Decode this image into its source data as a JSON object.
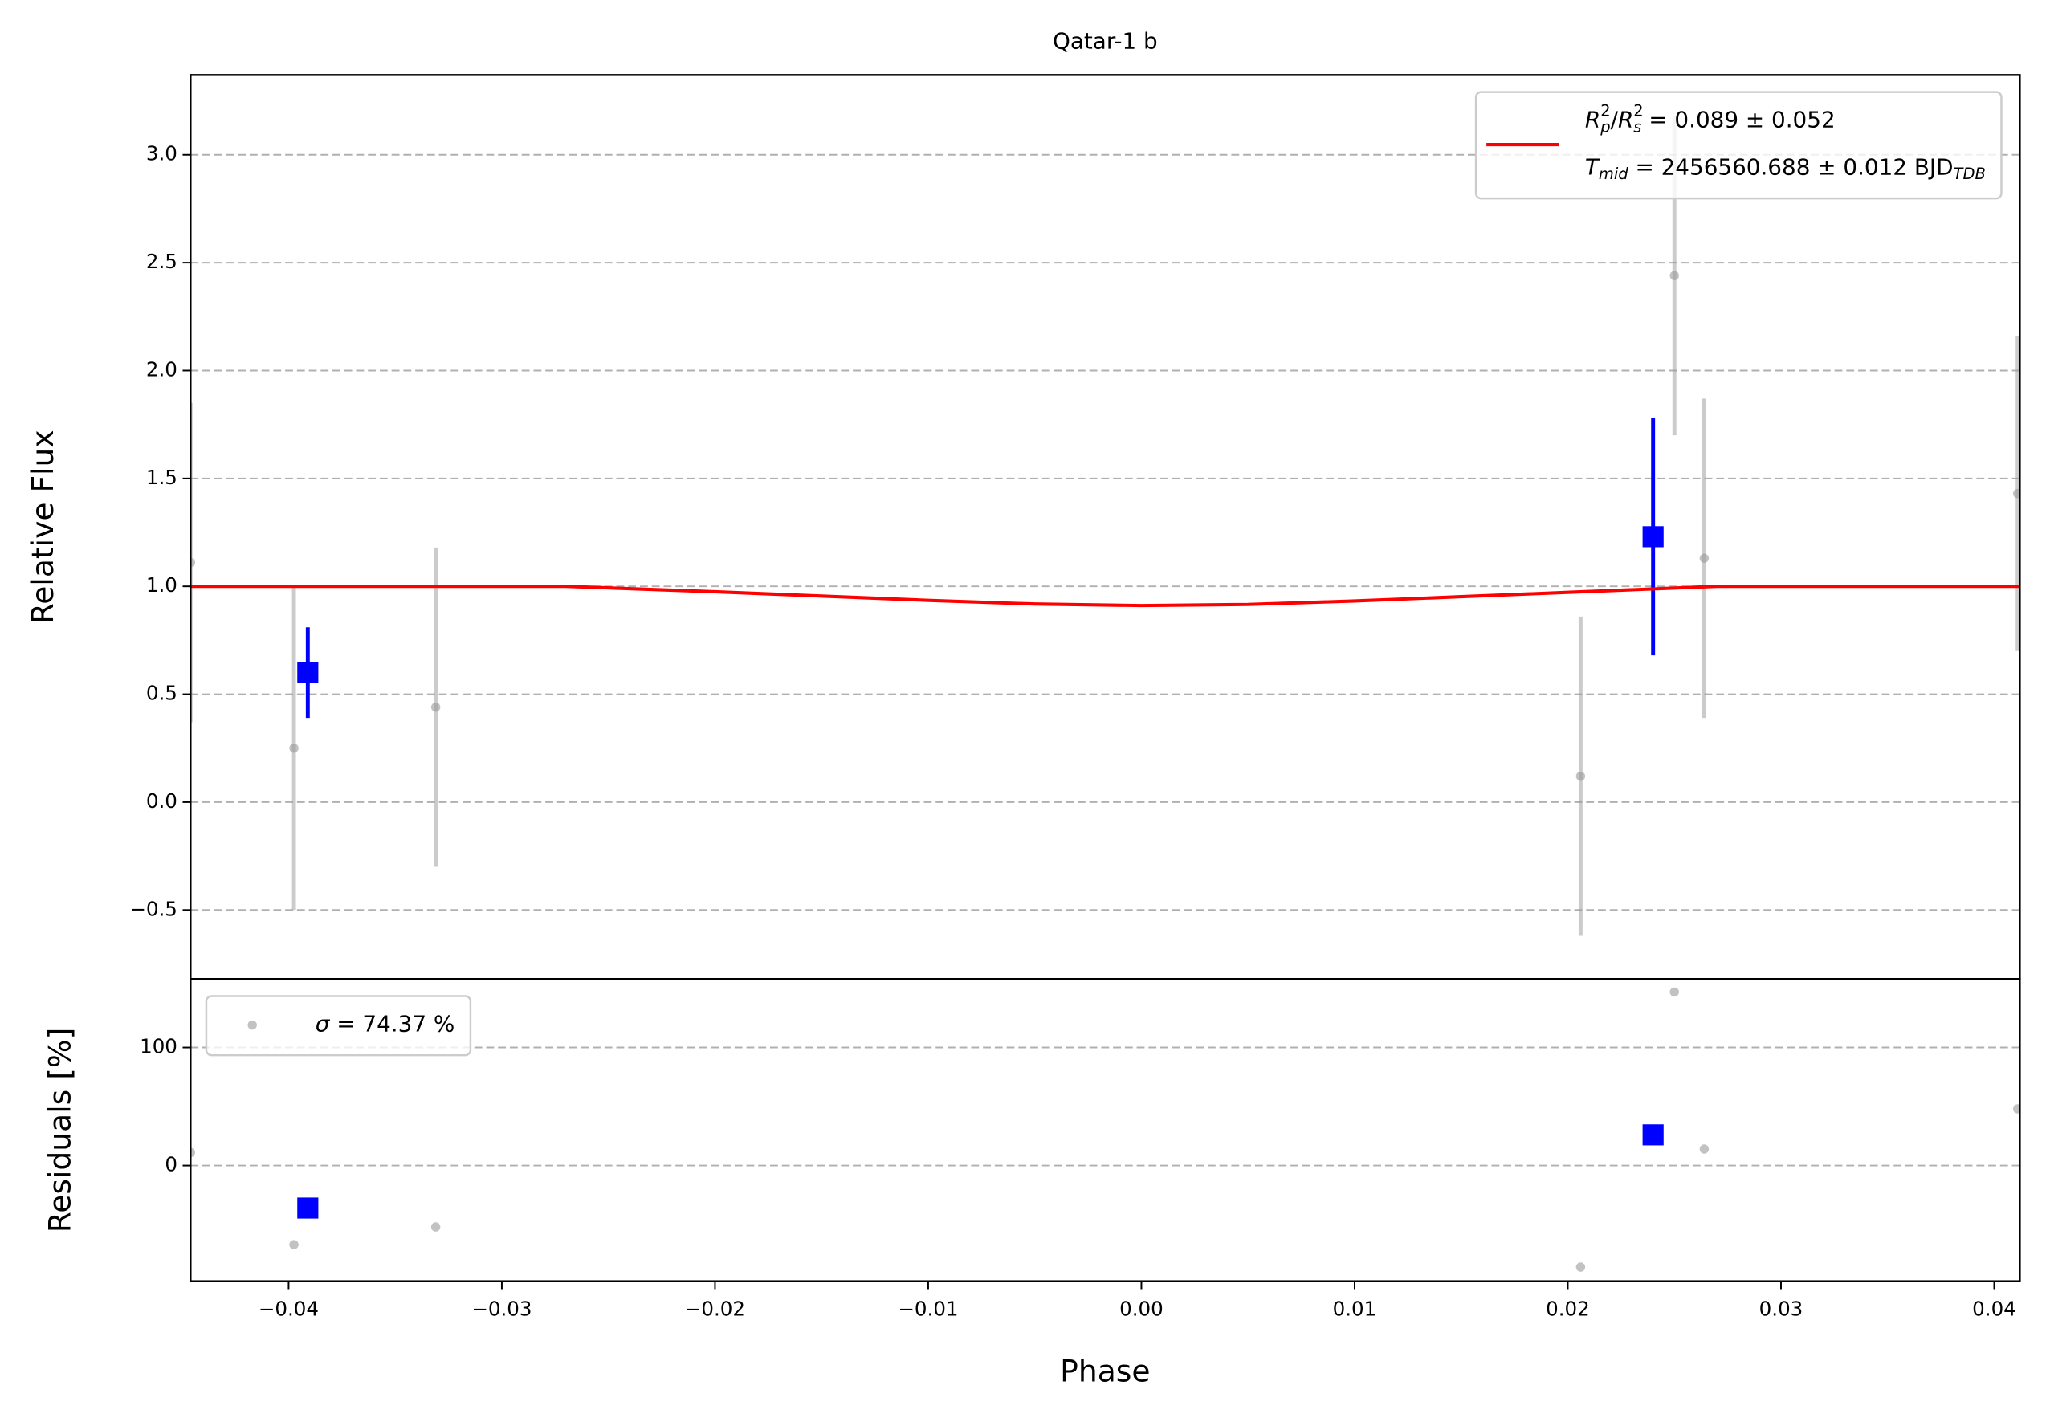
{
  "chart_data": [
    {
      "type": "scatter",
      "title": "Qatar-1 b",
      "y_label": "Relative Flux",
      "xlim": [
        -0.0446,
        0.0412
      ],
      "ylim": [
        -0.82,
        3.37
      ],
      "yticks": [
        {
          "value": -0.5,
          "label": "−0.5"
        },
        {
          "value": 0,
          "label": "0.0"
        },
        0.5,
        {
          "value": 1,
          "label": "1.0"
        },
        1.5,
        {
          "value": 2,
          "label": "2.0"
        },
        2.5,
        {
          "value": 3,
          "label": "3.0"
        }
      ],
      "grid": true,
      "legend": "upper right",
      "series": [
        {
          "color": "#999999",
          "marker": "circle",
          "x": [
            -0.0446,
            -0.03975,
            -0.0331,
            0.0206,
            0.025,
            0.0264,
            0.0411
          ],
          "values": [
            1.11,
            0.25,
            0.44,
            0.12,
            2.44,
            1.13,
            1.43
          ],
          "errors": [
            0.74,
            0.75,
            0.74,
            0.74,
            0.74,
            0.74,
            0.73
          ]
        },
        {
          "color": "#0000ff",
          "marker": "square",
          "x": [
            -0.0391,
            0.024
          ],
          "values": [
            0.6,
            1.23
          ],
          "errors": [
            0.21,
            0.55
          ]
        },
        {
          "type": "line",
          "color": "#ff0000",
          "name": [
            [
              {
                "text": "R",
                "style": "italic"
              },
              {
                "text": "2",
                "pos": "sup"
              },
              {
                "text": "p",
                "pos": "sub",
                "style": "italic"
              },
              {
                "text": "/"
              },
              {
                "text": "R",
                "style": "italic"
              },
              {
                "text": "2",
                "pos": "sup"
              },
              {
                "text": "s",
                "pos": "sub",
                "style": "italic"
              },
              {
                "text": " = 0.089 ± 0.052"
              }
            ],
            [
              {
                "text": "T",
                "style": "italic"
              },
              {
                "text": "mid",
                "pos": "sub",
                "style": "italic"
              },
              {
                "text": " = 2456560.688 ± 0.012 BJD"
              },
              {
                "text": "TDB",
                "pos": "sub",
                "style": "italic"
              }
            ]
          ],
          "x": [
            -0.0446,
            -0.027,
            -0.02,
            -0.015,
            -0.01,
            -0.005,
            0,
            0.005,
            0.01,
            0.015,
            0.02,
            0.027,
            0.0412
          ],
          "values": [
            1,
            1,
            0.975,
            0.955,
            0.935,
            0.918,
            0.911,
            0.916,
            0.932,
            0.952,
            0.972,
            1,
            1
          ]
        }
      ]
    },
    {
      "type": "scatter",
      "y_label": "Residuals [%]",
      "x_label": "Phase",
      "xlim": [
        -0.0446,
        0.0412
      ],
      "ylim": [
        -98,
        158
      ],
      "xticks": [
        {
          "value": -0.04,
          "label": "−0.04"
        },
        {
          "value": -0.03,
          "label": "−0.03"
        },
        {
          "value": -0.02,
          "label": "−0.02"
        },
        {
          "value": -0.01,
          "label": "−0.01"
        },
        {
          "value": 0,
          "label": "0.00"
        },
        0.01,
        0.02,
        0.03,
        0.04
      ],
      "yticks": [
        0,
        100
      ],
      "grid": true,
      "legend": "upper left",
      "series": [
        {
          "color": "#999999",
          "marker": "circle",
          "name": [
            [
              {
                "text": "σ",
                "style": "italic"
              },
              {
                "text": " = 74.37 %"
              }
            ]
          ],
          "x": [
            -0.0446,
            -0.03975,
            -0.0331,
            0.0206,
            0.025,
            0.0264,
            0.0411
          ],
          "values": [
            11,
            -67,
            -52,
            -86,
            147,
            14,
            48
          ]
        },
        {
          "color": "#0000ff",
          "marker": "square",
          "x": [
            -0.0391,
            0.024
          ],
          "values": [
            -36,
            26
          ]
        }
      ]
    }
  ]
}
